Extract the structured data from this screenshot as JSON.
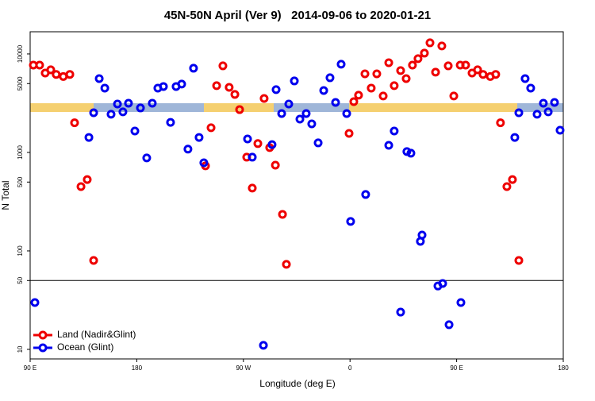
{
  "chart_data": {
    "type": "scatter",
    "title": "45N-50N April (Ver 9)   2014-09-06 to 2020-01-21",
    "xlabel": "Longitude (deg E)",
    "ylabel": "N Total",
    "xlim": [
      90,
      540
    ],
    "xticks": [
      {
        "value": 90,
        "label": "90 E"
      },
      {
        "value": 180,
        "label": "180"
      },
      {
        "value": 270,
        "label": "90 W"
      },
      {
        "value": 360,
        "label": "0"
      },
      {
        "value": 450,
        "label": "90 E"
      },
      {
        "value": 540,
        "label": "180"
      }
    ],
    "ylim": [
      8,
      16800
    ],
    "log_y": true,
    "yticks": [
      10,
      50,
      100,
      500,
      1000,
      5000,
      10000
    ],
    "divider": 50,
    "legend": "lower left",
    "series": [
      {
        "name": "Land (Nadir&Glint)",
        "color": "#ee0000",
        "x": [
          92.7,
          98,
          102.7,
          107.4,
          112,
          118,
          123.5,
          127.5,
          132.9,
          138.2,
          143.6,
          238,
          242.7,
          247.4,
          252.7,
          258,
          262.8,
          266.8,
          272.8,
          277.5,
          282.2,
          287.5,
          292.2,
          297,
          303,
          306.3,
          359.2,
          363.2,
          367.2,
          372.6,
          377.9,
          382.6,
          388,
          392.7,
          397.3,
          402.7,
          407.4,
          412.7,
          417.4,
          422.8,
          427.5,
          432.2,
          437.5,
          442.9,
          447.6,
          453,
          457.6,
          463,
          467.7,
          472.3,
          478.4,
          483,
          487,
          492.4,
          497.1,
          502.5
        ],
        "values": [
          7700,
          7700,
          6400,
          6900,
          6200,
          5900,
          6200,
          2000,
          450,
          530,
          80,
          730,
          1780,
          4760,
          7570,
          4580,
          3880,
          2720,
          895,
          434,
          1230,
          3530,
          1120,
          743,
          235,
          73,
          1560,
          3280,
          3810,
          6280,
          4500,
          6280,
          3740,
          8150,
          4760,
          6780,
          5620,
          7700,
          8950,
          10190,
          12970,
          6530,
          12050,
          7570,
          3740,
          7700,
          7700,
          6400,
          6900,
          6200,
          5900,
          6200,
          2000,
          450,
          530,
          80
        ]
      },
      {
        "name": "Ocean (Glint)",
        "color": "#0000ee",
        "x": [
          94,
          139.6,
          143.6,
          148.3,
          153,
          158.3,
          163.7,
          168.3,
          173,
          178.4,
          183.1,
          188.4,
          193.1,
          197.8,
          202.5,
          208.5,
          213.2,
          217.9,
          223.2,
          227.9,
          232.6,
          236.6,
          273.5,
          277.5,
          286.9,
          294.2,
          297.6,
          302.3,
          308.3,
          313,
          317.7,
          323,
          327.7,
          333.1,
          337.8,
          343.1,
          347.8,
          352.5,
          357.2,
          360.5,
          373.2,
          392.7,
          397.3,
          402.7,
          408,
          411.4,
          419.4,
          420.8,
          434.2,
          438.2,
          443.6,
          453.6,
          499.1,
          502.5,
          507.8,
          512.5,
          517.9,
          523.2,
          527.3,
          532.6,
          537.3
        ],
        "values": [
          29.9,
          1420,
          2530,
          5620,
          4500,
          2440,
          3100,
          2580,
          3160,
          1650,
          2830,
          880,
          3160,
          4500,
          4670,
          2020,
          4670,
          4940,
          1080,
          7160,
          1420,
          785,
          1370,
          895,
          11,
          1200,
          4340,
          2480,
          3100,
          5320,
          2180,
          2480,
          1950,
          1250,
          4250,
          5730,
          3220,
          7860,
          2480,
          199,
          374,
          1180,
          1650,
          23.9,
          1020,
          982,
          125,
          145,
          44,
          46.7,
          17.8,
          29.9,
          1420,
          2530,
          5620,
          4500,
          2440,
          3160,
          2580,
          3220,
          1680
        ]
      }
    ]
  }
}
